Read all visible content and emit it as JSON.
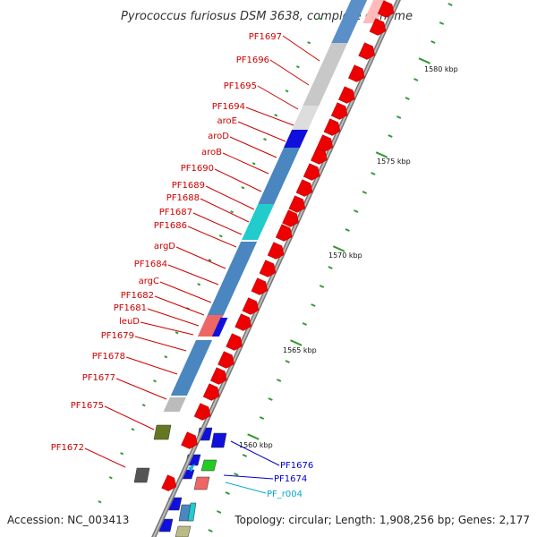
{
  "title": "Pyrococcus furiosus DSM 3638, complete genome",
  "accession": "Accession: NC_003413",
  "topology": "Topology: circular; Length: 1,908,256 bp; Genes: 2,177",
  "colors": {
    "label_red": "#cc0000",
    "label_blue": "#0000cc",
    "label_cyan": "#00aacc",
    "feature_red": "#ee0000",
    "steelblue": "#4682b4",
    "backbone": "#888888",
    "tick": "#339933"
  },
  "scale_ticks": [
    "1580 kbp",
    "1575 kbp",
    "1570 kbp",
    "1565 kbp",
    "1560 kbp"
  ],
  "left_labels": [
    "PF1697",
    "PF1696",
    "PF1695",
    "PF1694",
    "aroE",
    "aroD",
    "aroB",
    "PF1690",
    "PF1689",
    "PF1688",
    "PF1687",
    "PF1686",
    "argD",
    "PF1684",
    "argC",
    "PF1682",
    "PF1681",
    "leuD",
    "PF1679",
    "PF1678",
    "PF1677",
    "PF1675",
    "PF1672"
  ],
  "right_labels": [
    "PF1676",
    "PF1674",
    "PF_r004"
  ]
}
